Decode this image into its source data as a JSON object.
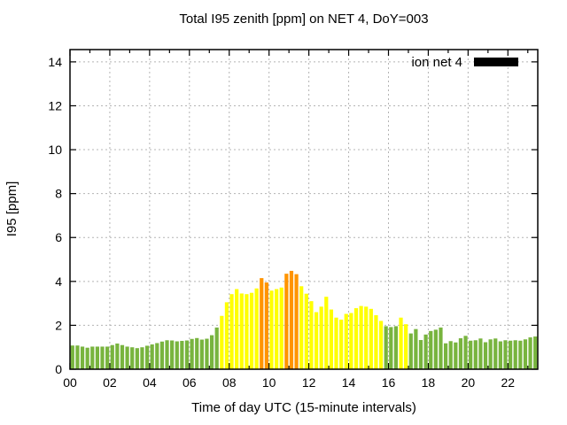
{
  "window": {
    "background": "#ffffff"
  },
  "chart_data": {
    "type": "bar",
    "title": "Total I95 zenith [ppm] on NET 4, DoY=003",
    "xlabel": "Time of day UTC (15-minute intervals)",
    "ylabel": "I95 [ppm]",
    "legend": {
      "label": "ion net 4",
      "swatch_color": "#000000",
      "position": "top-right-inside"
    },
    "grid": true,
    "xlim_hours": [
      0,
      23.5
    ],
    "ylim": [
      0,
      14.56
    ],
    "yticks": [
      0,
      2,
      4,
      6,
      8,
      10,
      12,
      14
    ],
    "xtick_hours": [
      0,
      2,
      4,
      6,
      8,
      10,
      12,
      14,
      16,
      18,
      20,
      22
    ],
    "xtick_labels": [
      "00",
      "02",
      "04",
      "06",
      "08",
      "10",
      "12",
      "14",
      "16",
      "18",
      "20",
      "22"
    ],
    "minor_xtick_every_hours": 1,
    "bar_interval_minutes": 15,
    "x_start": "00:00",
    "values": [
      1.08,
      1.08,
      1.03,
      0.98,
      1.03,
      1.03,
      1.03,
      1.03,
      1.1,
      1.17,
      1.1,
      1.03,
      1.0,
      0.96,
      1.0,
      1.07,
      1.13,
      1.19,
      1.26,
      1.32,
      1.31,
      1.27,
      1.29,
      1.31,
      1.38,
      1.42,
      1.35,
      1.39,
      1.55,
      1.9,
      2.43,
      3.05,
      3.42,
      3.65,
      3.45,
      3.42,
      3.48,
      3.68,
      4.15,
      3.95,
      3.58,
      3.65,
      3.72,
      4.35,
      4.48,
      4.33,
      3.78,
      3.44,
      3.1,
      2.6,
      2.85,
      3.3,
      2.72,
      2.35,
      2.26,
      2.52,
      2.56,
      2.78,
      2.88,
      2.85,
      2.75,
      2.46,
      2.2,
      1.96,
      1.92,
      1.96,
      2.35,
      2.05,
      1.63,
      1.83,
      1.33,
      1.58,
      1.74,
      1.8,
      1.9,
      1.18,
      1.28,
      1.22,
      1.41,
      1.52,
      1.3,
      1.32,
      1.4,
      1.23,
      1.36,
      1.4,
      1.27,
      1.32,
      1.3,
      1.32,
      1.3,
      1.36,
      1.45,
      1.49
    ],
    "bar_colors": "ggggggggggggggggggggggggggggggyyyyyyyyooyyyoooyyyyyyyyyyyyyyyyygggyygggggggggggggggggggggggggg",
    "palette": {
      "g": "#78b43e",
      "y": "#ffff00",
      "o": "#ff9400"
    },
    "gridline_color": "#b4b4b4",
    "border_color": "#000000"
  }
}
